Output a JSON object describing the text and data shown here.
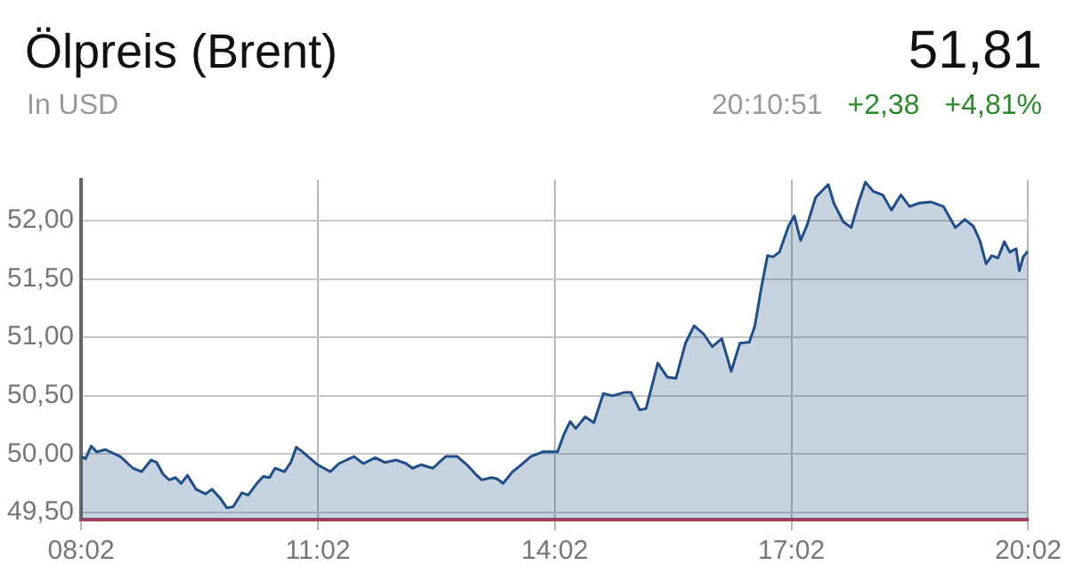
{
  "chart_data": {
    "type": "area",
    "title": "Ölpreis (Brent)",
    "subtitle": "In USD",
    "annotations": [
      "51,81",
      "20:10:51",
      "+2,38",
      "+4,81%"
    ],
    "series": [
      {
        "color": "#1f4e89",
        "x": [
          8.04,
          8.09,
          8.16,
          8.23,
          8.34,
          8.53,
          8.69,
          8.8,
          8.92,
          8.99,
          9.07,
          9.15,
          9.23,
          9.3,
          9.38,
          9.49,
          9.61,
          9.69,
          9.8,
          9.88,
          9.96,
          10.07,
          10.15,
          10.26,
          10.34,
          10.42,
          10.49,
          10.61,
          10.69,
          10.76,
          10.84,
          10.96,
          11.03,
          11.11,
          11.19,
          11.3,
          11.49,
          11.61,
          11.76,
          11.88,
          12.03,
          12.15,
          12.23,
          12.34,
          12.49,
          12.65,
          12.8,
          12.92,
          13.03,
          13.11,
          13.23,
          13.3,
          13.38,
          13.5,
          13.61,
          13.73,
          13.88,
          14.07,
          14.15,
          14.23,
          14.3,
          14.42,
          14.53,
          14.65,
          14.77,
          14.92,
          15.0,
          15.11,
          15.19,
          15.34,
          15.46,
          15.57,
          15.69,
          15.8,
          15.92,
          16.03,
          16.15,
          16.27,
          16.38,
          16.5,
          16.57,
          16.65,
          16.73,
          16.8,
          16.88,
          17.0,
          17.07,
          17.15,
          17.23,
          17.34,
          17.5,
          17.57,
          17.69,
          17.79,
          17.88,
          17.97,
          18.07,
          18.19,
          18.3,
          18.42,
          18.53,
          18.65,
          18.8,
          18.96,
          19.11,
          19.23,
          19.34,
          19.42,
          19.5,
          19.57,
          19.65,
          19.73,
          19.8,
          19.88,
          19.92,
          19.97,
          20.03
        ],
        "values": [
          49.98,
          49.96,
          50.07,
          50.02,
          50.04,
          49.98,
          49.88,
          49.85,
          49.95,
          49.93,
          49.83,
          49.78,
          49.8,
          49.75,
          49.82,
          49.7,
          49.66,
          49.7,
          49.62,
          49.54,
          49.55,
          49.67,
          49.65,
          49.75,
          49.81,
          49.8,
          49.88,
          49.85,
          49.93,
          50.06,
          50.02,
          49.95,
          49.91,
          49.88,
          49.85,
          49.92,
          49.98,
          49.92,
          49.97,
          49.93,
          49.95,
          49.92,
          49.88,
          49.91,
          49.88,
          49.98,
          49.98,
          49.91,
          49.83,
          49.78,
          49.8,
          49.79,
          49.75,
          49.85,
          49.91,
          49.98,
          50.02,
          50.02,
          50.17,
          50.28,
          50.22,
          50.32,
          50.27,
          50.52,
          50.5,
          50.53,
          50.53,
          50.38,
          50.39,
          50.78,
          50.66,
          50.65,
          50.95,
          51.1,
          51.03,
          50.92,
          50.99,
          50.71,
          50.95,
          50.96,
          51.1,
          51.42,
          51.7,
          51.69,
          51.73,
          51.96,
          52.04,
          51.83,
          51.96,
          52.2,
          52.31,
          52.15,
          51.99,
          51.94,
          52.15,
          52.33,
          52.25,
          52.22,
          52.09,
          52.22,
          52.12,
          52.15,
          52.16,
          52.12,
          51.94,
          52.01,
          51.95,
          51.83,
          51.63,
          51.7,
          51.68,
          51.82,
          51.73,
          51.76,
          51.57,
          51.69,
          51.74
        ]
      }
    ],
    "xlim": [
      8.033,
      20.033
    ],
    "xticks": [
      {
        "value": 8.033,
        "label": "08:02"
      },
      {
        "value": 11.033,
        "label": "11:02"
      },
      {
        "value": 14.033,
        "label": "14:02"
      },
      {
        "value": 17.033,
        "label": "17:02"
      },
      {
        "value": 20.033,
        "label": "20:02"
      }
    ],
    "ylim": [
      49.44,
      52.35
    ],
    "yticks": [
      {
        "value": 49.5,
        "label": "49,50"
      },
      {
        "value": 50,
        "label": "50,00"
      },
      {
        "value": 50.5,
        "label": "50,50"
      },
      {
        "value": 51,
        "label": "51,00"
      },
      {
        "value": 51.5,
        "label": "51,50"
      },
      {
        "value": 52,
        "label": "52,00"
      }
    ],
    "grid": true,
    "legend": false,
    "marker": "none",
    "line_style": "solid"
  }
}
